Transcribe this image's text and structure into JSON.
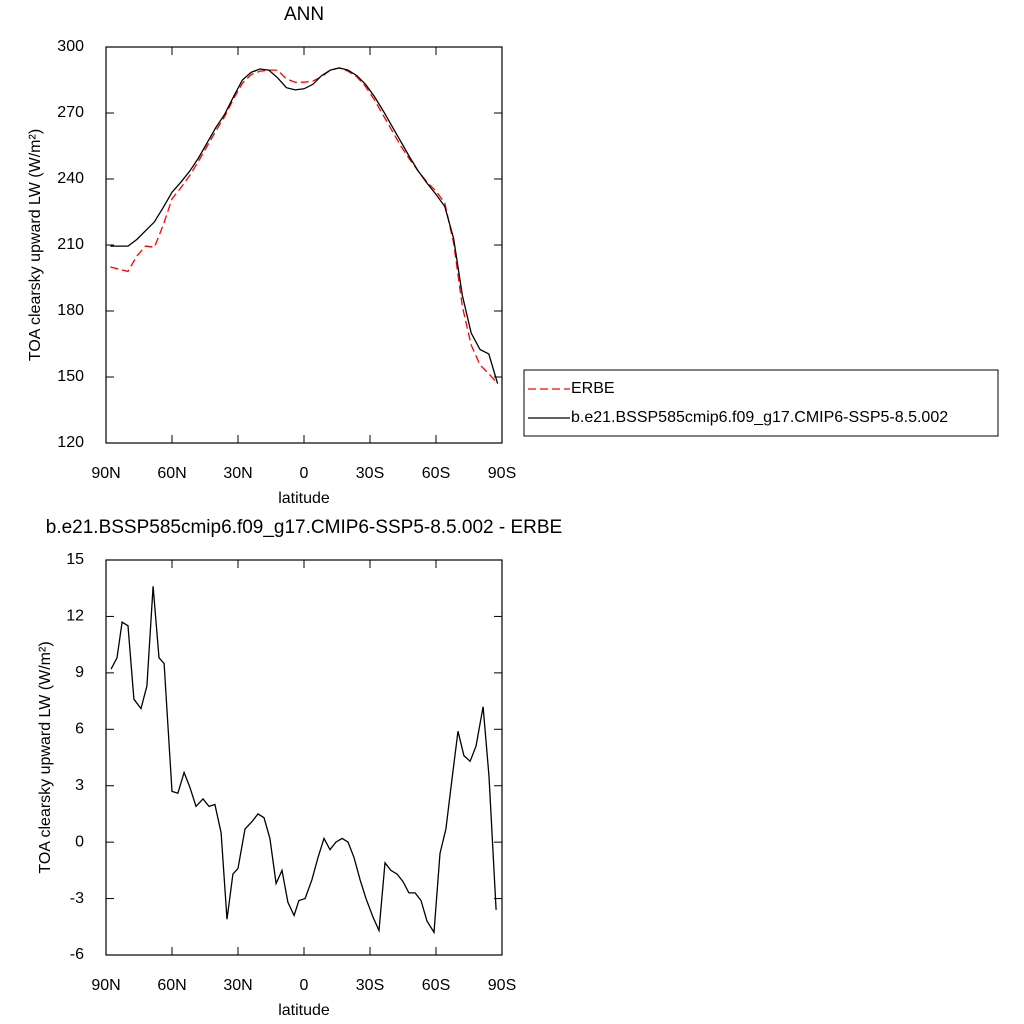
{
  "chart_data": [
    {
      "type": "line",
      "title": "ANN",
      "xlabel": "latitude",
      "ylabel": "TOA clearsky upward LW (W/m²)",
      "xlim": [
        90,
        -90
      ],
      "ylim": [
        120,
        300
      ],
      "xticks": [
        {
          "value": 90,
          "label": "90N"
        },
        {
          "value": 60,
          "label": "60N"
        },
        {
          "value": 30,
          "label": "30N"
        },
        0,
        {
          "value": -30,
          "label": "30S"
        },
        {
          "value": -60,
          "label": "60S"
        },
        {
          "value": -90,
          "label": "90S"
        }
      ],
      "yticks": [
        120,
        150,
        180,
        210,
        240,
        270,
        300
      ],
      "x": [
        88,
        84,
        80,
        76,
        72,
        68,
        64,
        60,
        56,
        52,
        48,
        44,
        40,
        36,
        32,
        28,
        24,
        20,
        16,
        12,
        8,
        4,
        0,
        -4,
        -8,
        -12,
        -16,
        -20,
        -24,
        -28,
        -32,
        -36,
        -40,
        -44,
        -48,
        -52,
        -56,
        -60,
        -64,
        -68,
        -72,
        -76,
        -80,
        -84,
        -88
      ],
      "series": [
        {
          "name": "ERBE",
          "color": "#ff0000",
          "dash": true,
          "values": [
            200,
            199,
            198,
            205,
            209.5,
            209,
            219,
            231,
            236,
            241.5,
            248,
            255,
            262,
            268.5,
            276.5,
            283.5,
            287.5,
            289,
            289.5,
            289.5,
            285.5,
            284,
            284,
            284.5,
            286.5,
            289.5,
            290.5,
            289,
            286.5,
            282,
            276,
            269,
            262,
            255,
            249,
            243.5,
            238.5,
            234.5,
            229,
            211,
            182,
            164.5,
            155.5,
            151.5,
            147
          ]
        },
        {
          "name": "b.e21.BSSP585cmip6.f09_g17.CMIP6-SSP5-8.5.002",
          "color": "#000000",
          "dash": false,
          "values": [
            209.5,
            209.5,
            209.5,
            212.5,
            216.5,
            220.5,
            227,
            234,
            238.5,
            243.5,
            249.5,
            256.5,
            263.5,
            269.5,
            277.5,
            285,
            288.5,
            290,
            289.5,
            286,
            281.5,
            280.5,
            281,
            283,
            287,
            289.5,
            290.5,
            289.5,
            287,
            283,
            277.5,
            271,
            264,
            257,
            250,
            243.5,
            238,
            233,
            227.5,
            213,
            187,
            170,
            162.5,
            160.5,
            147
          ]
        }
      ],
      "legend": "right"
    },
    {
      "type": "line",
      "title": "b.e21.BSSP585cmip6.f09_g17.CMIP6-SSP5-8.5.002 - ERBE",
      "xlabel": "latitude",
      "ylabel": "TOA clearsky upward LW (W/m²)",
      "xlim": [
        90,
        -90
      ],
      "ylim": [
        -6,
        15
      ],
      "xticks": [
        {
          "value": 90,
          "label": "90N"
        },
        {
          "value": 60,
          "label": "60N"
        },
        {
          "value": 30,
          "label": "30N"
        },
        0,
        {
          "value": -30,
          "label": "30S"
        },
        {
          "value": -60,
          "label": "60S"
        },
        {
          "value": -90,
          "label": "90S"
        }
      ],
      "yticks": [
        -6,
        -3,
        0,
        3,
        6,
        9,
        12,
        15
      ],
      "color": "#000000",
      "x": [
        87.7,
        85.0,
        82.7,
        80.0,
        77.3,
        74.1,
        71.4,
        68.6,
        65.9,
        63.6,
        60.0,
        57.3,
        54.5,
        51.8,
        49.1,
        45.9,
        43.2,
        40.5,
        37.7,
        35.0,
        32.3,
        30.0,
        26.8,
        23.6,
        20.9,
        18.2,
        15.5,
        12.7,
        10.0,
        7.3,
        4.5,
        2.3,
        -0.5,
        -3.6,
        -6.4,
        -9.1,
        -11.8,
        -14.5,
        -17.3,
        -20.0,
        -22.7,
        -25.5,
        -28.2,
        -31.4,
        -34.1,
        -36.8,
        -39.5,
        -42.3,
        -45.0,
        -47.7,
        -50.5,
        -53.2,
        -55.9,
        -59.1,
        -61.8,
        -64.5,
        -67.3,
        -70.0,
        -72.7,
        -75.5,
        -78.2,
        -81.4,
        -84.1,
        -87.3
      ],
      "values": [
        9.2,
        9.8,
        11.7,
        11.5,
        7.6,
        7.1,
        8.3,
        13.6,
        9.8,
        9.5,
        2.7,
        2.6,
        3.7,
        2.9,
        1.9,
        2.3,
        1.9,
        2.0,
        0.5,
        -4.1,
        -1.7,
        -1.4,
        0.7,
        1.1,
        1.5,
        1.3,
        0.2,
        -2.2,
        -1.5,
        -3.2,
        -3.9,
        -3.1,
        -3.0,
        -2.0,
        -0.8,
        0.2,
        -0.4,
        0.0,
        0.2,
        0.0,
        -0.8,
        -2.0,
        -3.0,
        -4.0,
        -4.7,
        -1.1,
        -1.5,
        -1.7,
        -2.1,
        -2.7,
        -2.7,
        -3.1,
        -4.2,
        -4.8,
        -0.6,
        0.7,
        3.4,
        5.9,
        4.6,
        4.3,
        5.1,
        7.2,
        3.5,
        -3.6
      ]
    }
  ]
}
